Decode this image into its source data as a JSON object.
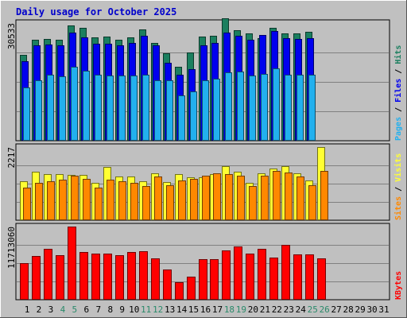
{
  "chart_data": {
    "type": "bar",
    "title": "Daily usage for October 2025",
    "days": [
      "1",
      "2",
      "3",
      "4",
      "5",
      "6",
      "7",
      "8",
      "9",
      "10",
      "11",
      "12",
      "13",
      "14",
      "15",
      "16",
      "17",
      "18",
      "19",
      "20",
      "21",
      "22",
      "23",
      "24",
      "25",
      "26",
      "27",
      "28",
      "29",
      "30",
      "31"
    ],
    "weekend_days": [
      "4",
      "5",
      "11",
      "12",
      "18",
      "19",
      "25",
      "26"
    ],
    "panels": [
      {
        "id": "requests",
        "max_label": "30533",
        "ymax": 30533,
        "series_label_parts": [
          "Pages",
          "Files",
          "Hits"
        ],
        "series": [
          {
            "name": "Hits",
            "color": "#1b7f5f",
            "values": [
              22200,
              26300,
              26500,
              26300,
              29900,
              29300,
              26800,
              27000,
              26200,
              26900,
              28900,
              25300,
              22600,
              19200,
              22900,
              27000,
              27200,
              31800,
              28700,
              27800,
              26600,
              29200,
              27900,
              27800,
              28300,
              null,
              null,
              null,
              null,
              null,
              null
            ]
          },
          {
            "name": "Files",
            "color": "#0000ee",
            "values": [
              20600,
              24800,
              25000,
              24800,
              28000,
              26800,
              25100,
              25200,
              24700,
              25300,
              27200,
              24700,
              20300,
              17100,
              18600,
              24700,
              25400,
              28100,
              27200,
              26100,
              27400,
              28500,
              26600,
              26400,
              26600,
              null,
              null,
              null,
              null,
              null,
              null
            ]
          },
          {
            "name": "Pages",
            "color": "#22b0ee",
            "values": [
              13800,
              15700,
              17100,
              16800,
              19200,
              18200,
              17200,
              17000,
              16900,
              16900,
              17100,
              15700,
              15600,
              11700,
              12700,
              15600,
              16000,
              17700,
              17900,
              16900,
              17300,
              18700,
              17200,
              17200,
              17200,
              null,
              null,
              null,
              null,
              null,
              null
            ]
          }
        ]
      },
      {
        "id": "visitors",
        "max_label": "2217",
        "ymax": 2217,
        "series_label_parts": [
          "Sites",
          "Visits"
        ],
        "series": [
          {
            "name": "Visits",
            "color": "#ffff33",
            "values": [
              1180,
              1480,
              1390,
              1400,
              1370,
              1380,
              1130,
              1620,
              1320,
              1320,
              1170,
              1420,
              1150,
              1400,
              1290,
              1300,
              1400,
              1630,
              1470,
              1130,
              1410,
              1560,
              1630,
              1430,
              1200,
              2217,
              null,
              null,
              null,
              null,
              null
            ]
          },
          {
            "name": "Sites",
            "color": "#ff8800",
            "values": [
              1000,
              1140,
              1190,
              1220,
              1340,
              1250,
              990,
              1220,
              1190,
              1130,
              1030,
              1330,
              1050,
              1200,
              1260,
              1340,
              1420,
              1390,
              1340,
              1030,
              1360,
              1500,
              1440,
              1320,
              1050,
              1500,
              null,
              null,
              null,
              null,
              null
            ]
          }
        ]
      },
      {
        "id": "kbytes",
        "max_label": "11713060",
        "ymax": 11713060,
        "series_label_parts": [
          "KBytes"
        ],
        "series": [
          {
            "name": "KBytes",
            "color": "#ff0000",
            "values": [
              5900000,
              7000000,
              8100000,
              7100000,
              11713060,
              7700000,
              7400000,
              7400000,
              7100000,
              7600000,
              7800000,
              6600000,
              4800000,
              2800000,
              3700000,
              6500000,
              6500000,
              7900000,
              8500000,
              7400000,
              8100000,
              6700000,
              8800000,
              7200000,
              7200000,
              6600000,
              null,
              null,
              null,
              null,
              null
            ]
          }
        ]
      }
    ]
  }
}
